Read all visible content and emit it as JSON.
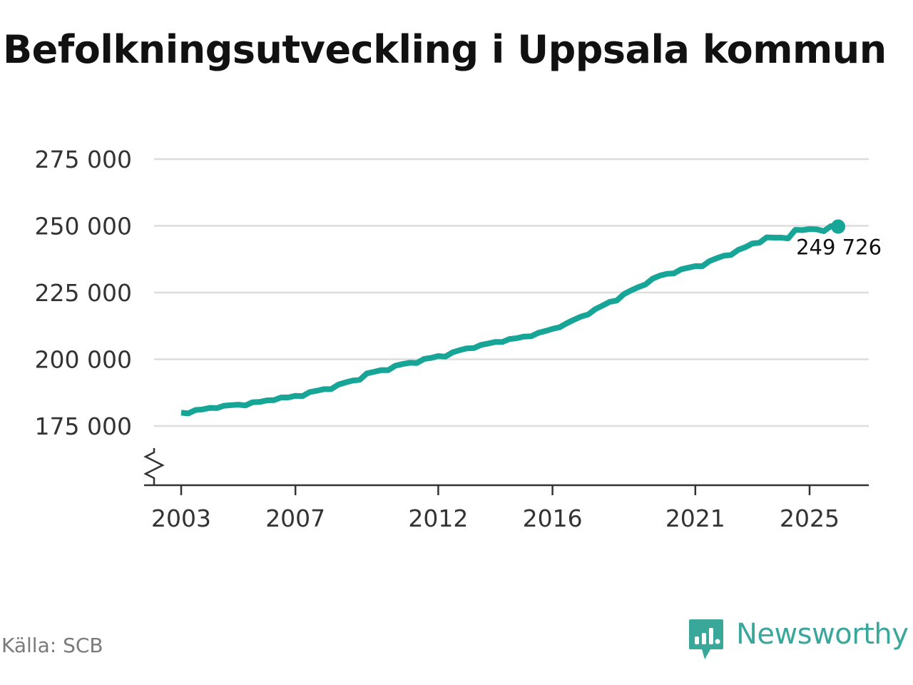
{
  "title": "Befolkningsutveckling i Uppsala kommun",
  "source": "Källa: SCB",
  "brand": {
    "name": "Newsworthy",
    "icon": "newsworthy-logo-icon"
  },
  "colors": {
    "line": "#16a596",
    "grid": "#dddddd",
    "axis": "#333333",
    "brand": "#3aa79b"
  },
  "chart_data": {
    "type": "line",
    "title": "Befolkningsutveckling i Uppsala kommun",
    "xlabel": "",
    "ylabel": "",
    "ylim": [
      158000,
      275000
    ],
    "y_axis_break": true,
    "grid": true,
    "yticks": [
      175000,
      200000,
      225000,
      250000,
      275000
    ],
    "ytick_labels": [
      "175 000",
      "200 000",
      "225 000",
      "250 000",
      "275 000"
    ],
    "xticks": [
      2003,
      2007,
      2012,
      2016,
      2021,
      2025
    ],
    "xtick_labels": [
      "2003",
      "2007",
      "2012",
      "2016",
      "2021",
      "2025"
    ],
    "end_label": "249 726",
    "series": [
      {
        "x": [
          "2003-01",
          "2003-04",
          "2003-07",
          "2003-10",
          "2004-01",
          "2004-04",
          "2004-07",
          "2004-10",
          "2005-01",
          "2005-04",
          "2005-07",
          "2005-10",
          "2006-01",
          "2006-04",
          "2006-07",
          "2006-10",
          "2007-01",
          "2007-04",
          "2007-07",
          "2007-10",
          "2008-01",
          "2008-04",
          "2008-07",
          "2008-10",
          "2009-01",
          "2009-04",
          "2009-07",
          "2009-10",
          "2010-01",
          "2010-04",
          "2010-07",
          "2010-10",
          "2011-01",
          "2011-04",
          "2011-07",
          "2011-10",
          "2012-01",
          "2012-04",
          "2012-07",
          "2012-10",
          "2013-01",
          "2013-04",
          "2013-07",
          "2013-10",
          "2014-01",
          "2014-04",
          "2014-07",
          "2014-10",
          "2015-01",
          "2015-04",
          "2015-07",
          "2015-10",
          "2016-01",
          "2016-04",
          "2016-07",
          "2016-10",
          "2017-01",
          "2017-04",
          "2017-07",
          "2017-10",
          "2018-01",
          "2018-04",
          "2018-07",
          "2018-10",
          "2019-01",
          "2019-04",
          "2019-07",
          "2019-10",
          "2020-01",
          "2020-04",
          "2020-07",
          "2020-10",
          "2021-01",
          "2021-04",
          "2021-07",
          "2021-10",
          "2022-01",
          "2022-04",
          "2022-07",
          "2022-10",
          "2023-01",
          "2023-04",
          "2023-07",
          "2023-10",
          "2024-01",
          "2024-04",
          "2024-07",
          "2024-10",
          "2025-01",
          "2025-04",
          "2025-07",
          "2025-10",
          "2026-01"
        ],
        "values": [
          180000,
          179700,
          181000,
          181200,
          181800,
          181700,
          182600,
          182800,
          183000,
          182700,
          183900,
          184000,
          184600,
          184700,
          185700,
          185700,
          186300,
          186200,
          187700,
          188200,
          188800,
          188800,
          190500,
          191300,
          192000,
          192300,
          194700,
          195300,
          195900,
          195900,
          197600,
          198200,
          198700,
          198600,
          200100,
          200500,
          201200,
          201000,
          202600,
          203400,
          204100,
          204200,
          205400,
          205900,
          206500,
          206500,
          207600,
          207900,
          208500,
          208600,
          209900,
          210600,
          211400,
          212000,
          213500,
          214800,
          216000,
          216800,
          218800,
          220100,
          221500,
          222000,
          224400,
          225800,
          227000,
          228000,
          230200,
          231300,
          232000,
          232200,
          233700,
          234300,
          234900,
          234900,
          236800,
          237900,
          238800,
          239100,
          241000,
          242000,
          243400,
          243700,
          245700,
          245600,
          245600,
          245300,
          248500,
          248400,
          248800,
          248700,
          248000,
          249900,
          249726
        ]
      }
    ]
  }
}
